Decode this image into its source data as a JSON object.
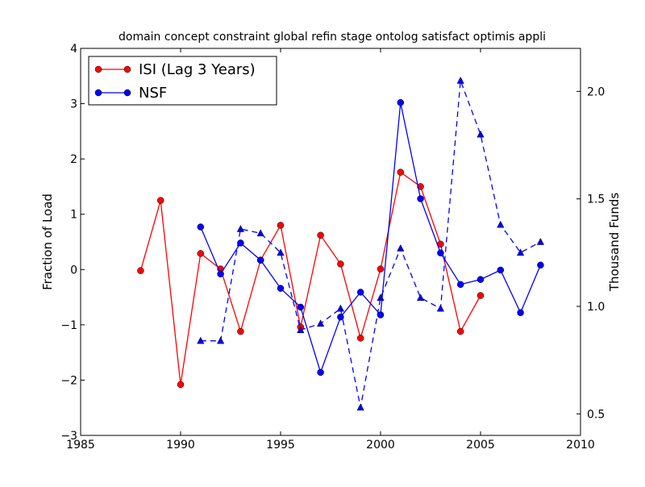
{
  "chart_data": {
    "type": "line",
    "title": "domain concept constraint global refin stage ontolog satisfact optimis appli",
    "xlabel": "",
    "ylabel": "Fraction of Load",
    "y2label": "Thousand Funds",
    "xlim": [
      1985,
      2010
    ],
    "ylim": [
      -3,
      4
    ],
    "y2lim": [
      0.4,
      2.2
    ],
    "xticks": [
      1985,
      1990,
      1995,
      2000,
      2005,
      2010
    ],
    "yticks": [
      -3,
      -2,
      -1,
      0,
      1,
      2,
      3,
      4
    ],
    "y2ticks": [
      0.5,
      1.0,
      1.5,
      2.0
    ],
    "y2tick_labels": [
      "0.5",
      "1.0",
      "1.5",
      "2.0"
    ],
    "legend_position": "top-left",
    "series": [
      {
        "name": "ISI (Lag 3 Years)",
        "axis": "left",
        "color": "#ff0000",
        "marker": "circle",
        "line_style": "solid",
        "x": [
          1988,
          1989,
          1990,
          1991,
          1992,
          1993,
          1994,
          1995,
          1996,
          1997,
          1998,
          1999,
          2000,
          2001,
          2002,
          2003,
          2004,
          2005
        ],
        "values": [
          -0.02,
          1.25,
          -2.08,
          0.29,
          0.01,
          -1.12,
          0.17,
          0.8,
          -1.04,
          0.62,
          0.1,
          -1.24,
          0.01,
          1.76,
          1.5,
          0.46,
          -1.12,
          -0.47
        ]
      },
      {
        "name": "NSF",
        "axis": "left",
        "color": "#0000ff",
        "marker": "circle",
        "line_style": "solid",
        "x": [
          1991,
          1992,
          1993,
          1994,
          1995,
          1996,
          1997,
          1998,
          1999,
          2000,
          2001,
          2002,
          2003,
          2004,
          2005,
          2006,
          2007,
          2008
        ],
        "values": [
          0.77,
          -0.08,
          0.48,
          0.17,
          -0.34,
          -0.68,
          -1.86,
          -0.86,
          -0.41,
          -0.82,
          3.02,
          1.28,
          0.3,
          -0.27,
          -0.18,
          -0.01,
          -0.78,
          0.08
        ]
      },
      {
        "name": "",
        "axis": "right",
        "color": "#0000ff",
        "marker": "triangle",
        "line_style": "dashed",
        "x": [
          1991,
          1992,
          1993,
          1994,
          1995,
          1996,
          1997,
          1998,
          1999,
          2000,
          2001,
          2002,
          2003,
          2004,
          2005,
          2006,
          2007,
          2008
        ],
        "values": [
          0.84,
          0.84,
          1.36,
          1.34,
          1.25,
          0.89,
          0.92,
          0.99,
          0.53,
          1.04,
          1.27,
          1.04,
          0.99,
          2.05,
          1.8,
          1.38,
          1.25,
          1.3
        ]
      }
    ]
  }
}
